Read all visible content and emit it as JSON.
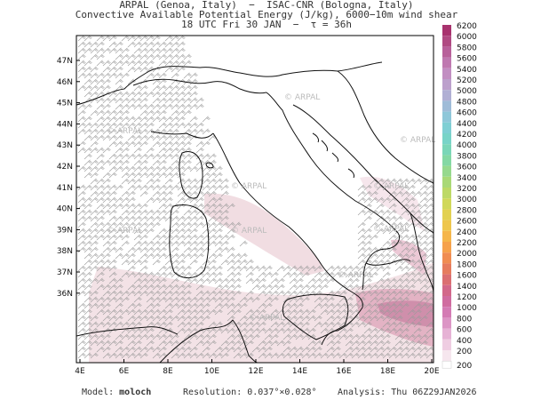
{
  "header": {
    "line1": "ARPAL (Genoa, Italy)  −  ISAC-CNR (Bologna, Italy)",
    "line2": "Convective Available Potential Energy (J/kg), 6000−10m wind shear",
    "line3": "18 UTC Fri 30 JAN  −  τ = 36h"
  },
  "map": {
    "lat_labels": [
      "47N",
      "46N",
      "45N",
      "44N",
      "43N",
      "42N",
      "41N",
      "40N",
      "39N",
      "38N",
      "37N",
      "36N"
    ],
    "lon_labels": [
      "4E",
      "6E",
      "8E",
      "10E",
      "12E",
      "14E",
      "16E",
      "18E",
      "20E"
    ],
    "watermark": "ARPAL",
    "colors": {
      "coast": "#111111",
      "barbs": "#9a9a9a",
      "cape_low": "#f1dde2",
      "cape_mid": "#e3b3c4",
      "cape_high": "#c9819f"
    }
  },
  "colorbar": {
    "levels": [
      "6200",
      "6000",
      "5800",
      "5600",
      "5400",
      "5200",
      "5000",
      "4800",
      "4600",
      "4400",
      "4200",
      "4000",
      "3800",
      "3600",
      "3400",
      "3200",
      "3000",
      "2800",
      "2600",
      "2400",
      "2200",
      "2000",
      "1800",
      "1600",
      "1400",
      "1200",
      "1000",
      "800",
      "600",
      "400",
      "200"
    ],
    "colors": [
      "#a8326e",
      "#b04a82",
      "#b8609a",
      "#bf78b0",
      "#c28ec2",
      "#bca0cc",
      "#b0afd4",
      "#9fbcd8",
      "#8ec7d9",
      "#7fcfd4",
      "#78d4c8",
      "#7ad6b8",
      "#84d8a4",
      "#96d98e",
      "#a9d977",
      "#bdd966",
      "#d0d85a",
      "#e2d151",
      "#eec64c",
      "#f5b64b",
      "#f6a24c",
      "#f08d52",
      "#e67c5e",
      "#db6f72",
      "#d2688a",
      "#d06ca0",
      "#d47bb4",
      "#dc95c5",
      "#e6b2d5",
      "#efcde2",
      "#f6e6ee"
    ],
    "bottom_label": "200"
  },
  "footer": {
    "model_label": "Model:",
    "model_value": "moloch",
    "resolution": "Resolution: 0.037°×0.028°",
    "analysis": "Analysis: Thu 06Z29JAN2026"
  }
}
